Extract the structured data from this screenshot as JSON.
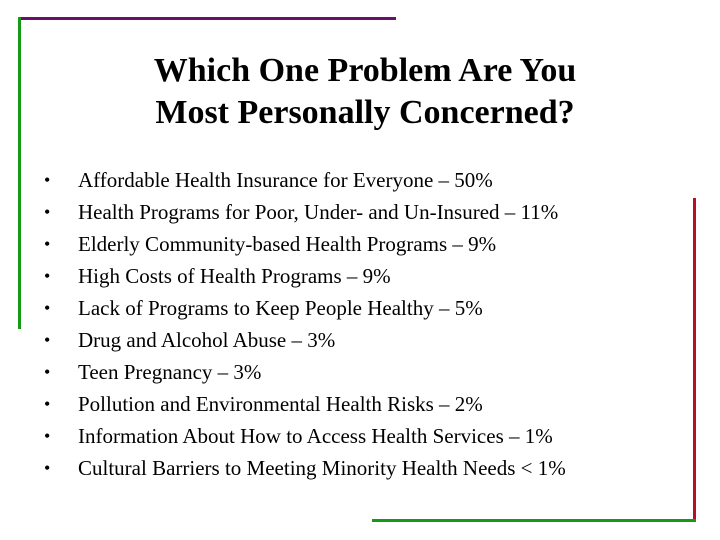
{
  "slide": {
    "title_line_1": "Which One Problem Are You",
    "title_line_2": "Most Personally Concerned?",
    "bullet_symbol": "•",
    "items": [
      "Affordable Health Insurance for Everyone – 50%",
      "Health Programs for Poor, Under- and Un-Insured – 11%",
      "Elderly Community-based Health Programs – 9%",
      "High Costs of Health Programs – 9%",
      "Lack of Programs to Keep People Healthy – 5%",
      "Drug and Alcohol Abuse – 3%",
      "Teen Pregnancy – 3%",
      "Pollution and Environmental Health Risks – 2%",
      "Information About How to Access Health Services – 1%",
      "Cultural Barriers to Meeting Minority Health Needs < 1%"
    ]
  },
  "colors": {
    "accent_purple": "#6a0f6a",
    "accent_green": "#159a15",
    "accent_red": "#b81020"
  }
}
